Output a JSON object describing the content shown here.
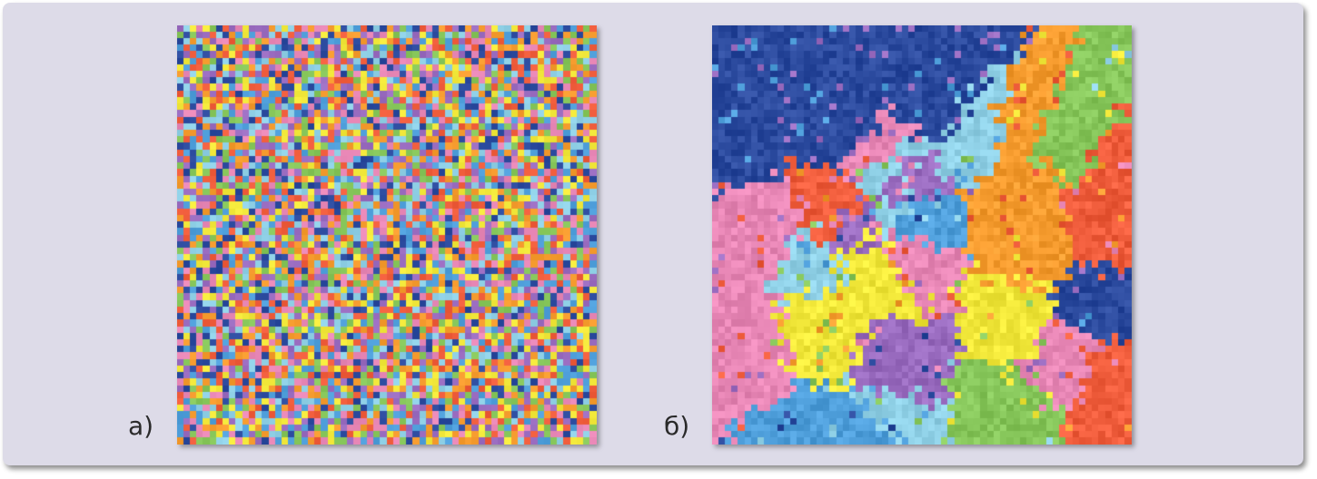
{
  "figure": {
    "background_color": "#dddbe8",
    "palette": [
      "#2b4a9e",
      "#4f9fdb",
      "#8fd0e6",
      "#86c65a",
      "#f2e83a",
      "#f59b2e",
      "#ef5c3b",
      "#e887b6",
      "#9a6cc0"
    ],
    "panels": [
      {
        "id": "a",
        "label": "а)",
        "pattern": "random-noise"
      },
      {
        "id": "b",
        "label": "б)",
        "pattern": "clustered-domains"
      }
    ]
  }
}
